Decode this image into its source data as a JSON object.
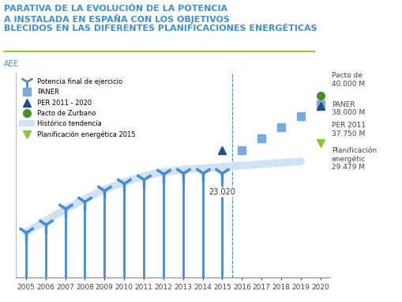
{
  "chart_data": {
    "type": "line",
    "title": "PARATIVA DE LA EVOLUCIÓN DE LA POTENCIA\nA INSTALADA EN ESPAÑA CON LOS OBJETIVOS\nBLECIDOS EN LAS DIFERENTES PLANIFICACIONES ENERGÉTICAS",
    "subtitle": "AEE",
    "x": [
      2005,
      2006,
      2007,
      2008,
      2009,
      2010,
      2011,
      2012,
      2013,
      2014,
      2015,
      2016,
      2017,
      2018,
      2019,
      2020
    ],
    "xlim": [
      2004.5,
      2020.5
    ],
    "xticks": [
      2005,
      2006,
      2007,
      2008,
      2009,
      2010,
      2011,
      2012,
      2013,
      2014,
      2015,
      2016,
      2017,
      2018,
      2019,
      2020
    ],
    "ylim": [
      0,
      45000
    ],
    "yticks": [],
    "tick_labels": "x",
    "legend": "upper left",
    "data_labels": true,
    "series": [
      {
        "name": "Potencia final de ejercicio",
        "type": "stem",
        "color": "#4a8ad0",
        "marker": "turbine",
        "values": [
          10028,
          11623,
          15145,
          16740,
          19149,
          20676,
          21529,
          22789,
          22959,
          22987,
          23020,
          null,
          null,
          null,
          null,
          null
        ],
        "value_labels": [
          null,
          null,
          null,
          null,
          null,
          null,
          null,
          null,
          null,
          null,
          "23.020",
          null,
          null,
          null,
          null,
          null
        ]
      },
      {
        "name": "PANER",
        "type": "scatter",
        "color": "#7aa9dc",
        "marker": "square",
        "values": [
          null,
          null,
          null,
          null,
          null,
          null,
          null,
          null,
          null,
          null,
          null,
          28000,
          30500,
          33000,
          35500,
          38000
        ],
        "annotation": "PANER\n38.000 M"
      },
      {
        "name": "PER 2011 - 2020",
        "type": "scatter",
        "color": "#1f4e8c",
        "marker": "triangle",
        "values": [
          null,
          null,
          null,
          null,
          null,
          null,
          null,
          null,
          null,
          null,
          28000,
          null,
          null,
          null,
          null,
          37750
        ],
        "annotation": "PER 2011\n37.750 M"
      },
      {
        "name": "Pacto de Zurbano",
        "type": "scatter",
        "color": "#4b8c2a",
        "marker": "circle",
        "values": [
          null,
          null,
          null,
          null,
          null,
          null,
          null,
          null,
          null,
          null,
          null,
          null,
          null,
          null,
          null,
          40000
        ],
        "annotation": "Pacto de\n40.000 M"
      },
      {
        "name": "Histórico tendencia",
        "type": "band",
        "color": "#cfe3f5",
        "marker": "none",
        "values": [
          10000,
          12500,
          15000,
          17300,
          19300,
          21000,
          22300,
          23200,
          23700,
          24000,
          24300,
          24600,
          24900,
          25200,
          25500,
          null
        ]
      },
      {
        "name": "Planificación energética 2015",
        "type": "scatter",
        "color": "#8cc63f",
        "marker": "triangle_down",
        "values": [
          null,
          null,
          null,
          null,
          null,
          null,
          null,
          null,
          null,
          null,
          null,
          null,
          null,
          null,
          null,
          29479
        ],
        "annotation": "Planificación\nenergétic\n29.479 M"
      }
    ]
  }
}
